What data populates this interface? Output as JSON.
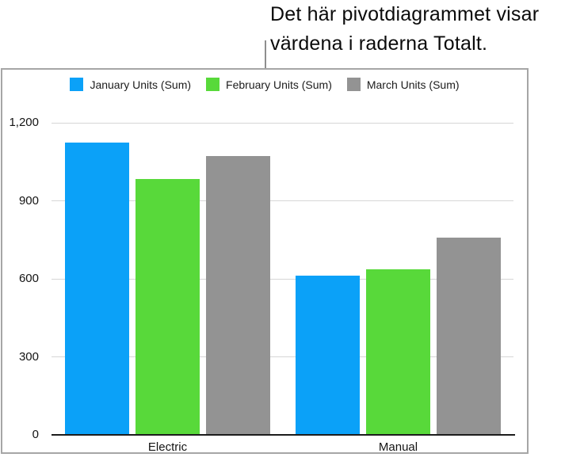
{
  "callout": {
    "line1": "Det här pivotdiagrammet visar",
    "line2": "värdena i raderna Totalt."
  },
  "chart_data": {
    "type": "bar",
    "title": "",
    "categories": [
      "Electric",
      "Manual"
    ],
    "series": [
      {
        "name": "January Units (Sum)",
        "color": "#0BA1F8",
        "values": [
          1120,
          610
        ]
      },
      {
        "name": "February Units (Sum)",
        "color": "#58D93A",
        "values": [
          980,
          635
        ]
      },
      {
        "name": "March Units (Sum)",
        "color": "#939393",
        "values": [
          1070,
          755
        ]
      }
    ],
    "ylim": [
      0,
      1200
    ],
    "yticks": [
      0,
      300,
      600,
      900,
      1200
    ],
    "ytick_labels": [
      "0",
      "300",
      "600",
      "900",
      "1,200"
    ],
    "grid": "horizontal",
    "legend_position": "top-center"
  }
}
